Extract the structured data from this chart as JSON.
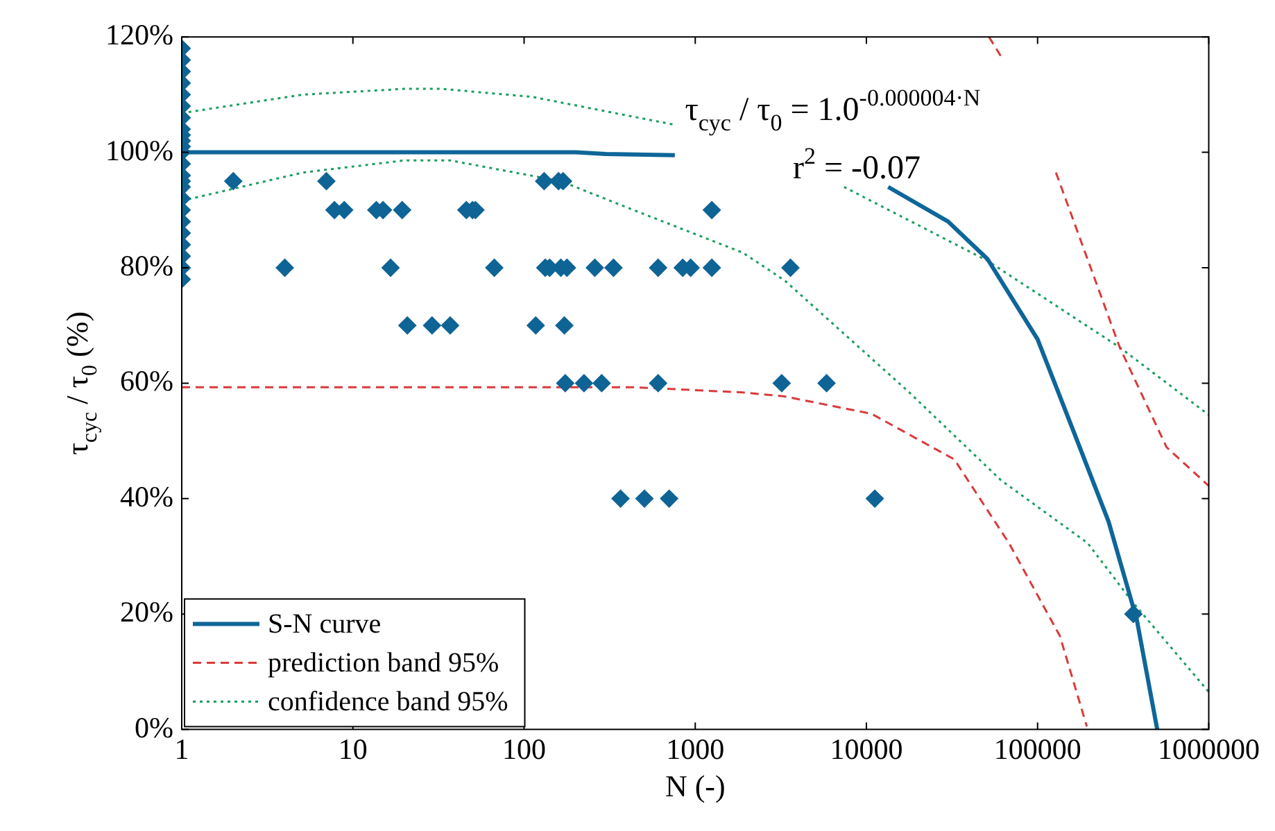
{
  "chart_data": {
    "type": "scatter",
    "xlabel": "N (-)",
    "ylabel": "τ$_{cyc}$ / τ$_{0}$ (%)",
    "log": "x",
    "xlim": [
      1,
      1000000
    ],
    "xticks": [
      1,
      10,
      100,
      1000,
      10000,
      100000,
      1000000
    ],
    "ylim": [
      0,
      120
    ],
    "yticks": [
      {
        "value": 0,
        "label": "0%"
      },
      {
        "value": 20,
        "label": "20%"
      },
      {
        "value": 40,
        "label": "40%"
      },
      {
        "value": 60,
        "label": "60%"
      },
      {
        "value": 80,
        "label": "80%"
      },
      {
        "value": 100,
        "label": "100%"
      },
      {
        "value": 120,
        "label": "120%"
      }
    ],
    "grid": false,
    "legend": "bottom left",
    "annotations": [
      "τ$_{cyc}$ / τ$_{0}$ = 1.0$^{-0.000004·N}$",
      "r$^{2}$ = -0.07"
    ],
    "series": [
      {
        "type": "scatter",
        "color": "#0f6496",
        "marker": "diamond",
        "x": [
          1,
          1,
          1,
          1,
          1,
          1,
          1,
          1,
          1,
          1,
          1,
          1,
          1,
          1,
          1,
          1,
          1,
          1,
          1,
          1,
          1,
          1,
          1,
          1,
          2,
          7,
          131,
          159,
          169,
          7.8,
          8.9,
          13.7,
          15,
          19.4,
          46,
          50,
          52,
          1250,
          4,
          16.6,
          67,
          133,
          141,
          164,
          178,
          259,
          333,
          607,
          845,
          940,
          1250,
          3600,
          20.8,
          29,
          37,
          117,
          172,
          174,
          224,
          284,
          607,
          3200,
          5850,
          366,
          505,
          704,
          11200,
          363000
        ],
        "values": [
          78,
          80,
          82,
          84,
          86,
          88,
          90,
          92,
          94,
          95,
          96,
          98,
          100,
          101,
          102,
          103,
          104,
          106,
          108,
          110,
          112,
          114,
          116,
          118,
          95,
          95,
          95,
          95,
          95,
          90,
          90,
          90,
          90,
          90,
          90,
          90,
          90,
          90,
          80,
          80,
          80,
          80,
          80,
          80,
          80,
          80,
          80,
          80,
          80,
          80,
          80,
          80,
          70,
          70,
          70,
          70,
          70,
          60,
          60,
          60,
          60,
          60,
          60,
          40,
          40,
          40,
          40,
          20
        ]
      },
      {
        "type": "line",
        "name": "S-N curve",
        "color": "#0e6699",
        "line_style": "solid",
        "marker": "none",
        "x": [
          1,
          200,
          300,
          760,
          2000,
          13400,
          30000,
          51000,
          100000,
          163000,
          260000,
          380000,
          500000
        ],
        "values": [
          100,
          100,
          99.7,
          99.5,
          null,
          94,
          88,
          81.5,
          67.6,
          51.5,
          36,
          19,
          0
        ]
      },
      {
        "type": "line",
        "name": "prediction band 95%",
        "color": "#d93a3a",
        "line_style": "dashed",
        "marker": "none",
        "x": [
          1,
          100,
          435,
          1900,
          3330,
          10700,
          32600,
          68000,
          135000,
          194000
        ],
        "values": [
          59.3,
          59.3,
          59.3,
          58.4,
          57.7,
          54.7,
          46.8,
          32.3,
          16.2,
          0.5
        ]
      },
      {
        "type": "line",
        "color": "#d93a3a",
        "line_style": "dashed",
        "marker": "none",
        "x": [
          52000,
          63000,
          90000,
          128000,
          302000,
          567000,
          1000000
        ],
        "values": [
          120,
          116,
          null,
          96.5,
          66.2,
          48.9,
          42.2
        ]
      },
      {
        "type": "line",
        "name": "confidence band 95%",
        "color": "#1a9e5e",
        "line_style": "dotted",
        "marker": "none",
        "x": [
          1,
          5.1,
          20,
          37,
          164,
          380,
          1900,
          3330,
          17800,
          61000,
          196000,
          356000,
          1000000
        ],
        "values": [
          91.6,
          96.5,
          98.6,
          98.6,
          95,
          90.7,
          82.6,
          77.8,
          58.4,
          43.2,
          32.3,
          22.2,
          6.5
        ]
      },
      {
        "type": "line",
        "color": "#1a9e5e",
        "line_style": "dotted",
        "marker": "none",
        "x": [
          1,
          5.1,
          20,
          33,
          112,
          750,
          2500,
          7400,
          51000,
          302000,
          1000000
        ],
        "values": [
          106.8,
          110,
          111,
          111,
          109.6,
          104.8,
          null,
          94,
          81.2,
          66.2,
          54.5
        ]
      }
    ]
  }
}
